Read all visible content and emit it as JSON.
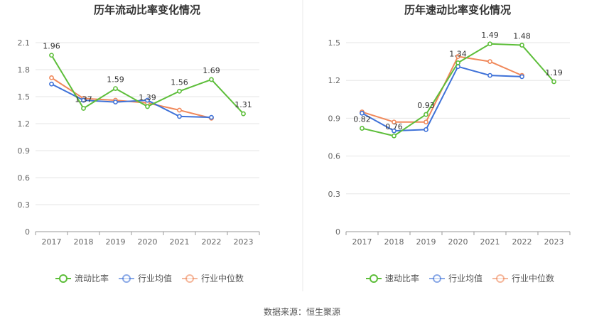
{
  "source_label": "数据来源：恒生聚源",
  "chart_data": [
    {
      "id": "current",
      "type": "line",
      "title": "历年流动比率变化情况",
      "categories": [
        "2017",
        "2018",
        "2019",
        "2020",
        "2021",
        "2022",
        "2023"
      ],
      "yticks": [
        "0",
        "0.3",
        "0.6",
        "0.9",
        "1.2",
        "1.5",
        "1.8",
        "2.1"
      ],
      "ylim": [
        0,
        2.1
      ],
      "series": [
        {
          "name": "流动比率",
          "color": "#5dbe3a",
          "values": [
            1.96,
            1.37,
            1.59,
            1.39,
            1.56,
            1.69,
            1.31
          ],
          "labels": [
            "1.96",
            "1.37",
            "1.59",
            "1.39",
            "1.56",
            "1.69",
            "1.31"
          ]
        },
        {
          "name": "行业均值",
          "color": "#3f72d8",
          "values": [
            1.64,
            1.46,
            1.44,
            1.46,
            1.28,
            1.27,
            null
          ]
        },
        {
          "name": "行业中位数",
          "color": "#f0885a",
          "values": [
            1.71,
            1.48,
            1.46,
            1.43,
            1.35,
            1.26,
            null
          ]
        }
      ]
    },
    {
      "id": "quick",
      "type": "line",
      "title": "历年速动比率变化情况",
      "categories": [
        "2017",
        "2018",
        "2019",
        "2020",
        "2021",
        "2022",
        "2023"
      ],
      "yticks": [
        "0",
        "0.3",
        "0.6",
        "0.9",
        "1.2",
        "1.5"
      ],
      "ylim": [
        0,
        1.5
      ],
      "series": [
        {
          "name": "速动比率",
          "color": "#5dbe3a",
          "values": [
            0.82,
            0.76,
            0.93,
            1.34,
            1.49,
            1.48,
            1.19
          ],
          "labels": [
            "0.82",
            "0.76",
            "0.93",
            "1.34",
            "1.49",
            "1.48",
            "1.19"
          ]
        },
        {
          "name": "行业均值",
          "color": "#3f72d8",
          "values": [
            0.94,
            0.8,
            0.81,
            1.31,
            1.24,
            1.23,
            null
          ]
        },
        {
          "name": "行业中位数",
          "color": "#f0885a",
          "values": [
            0.95,
            0.87,
            0.87,
            1.39,
            1.35,
            1.24,
            null
          ]
        }
      ]
    }
  ]
}
